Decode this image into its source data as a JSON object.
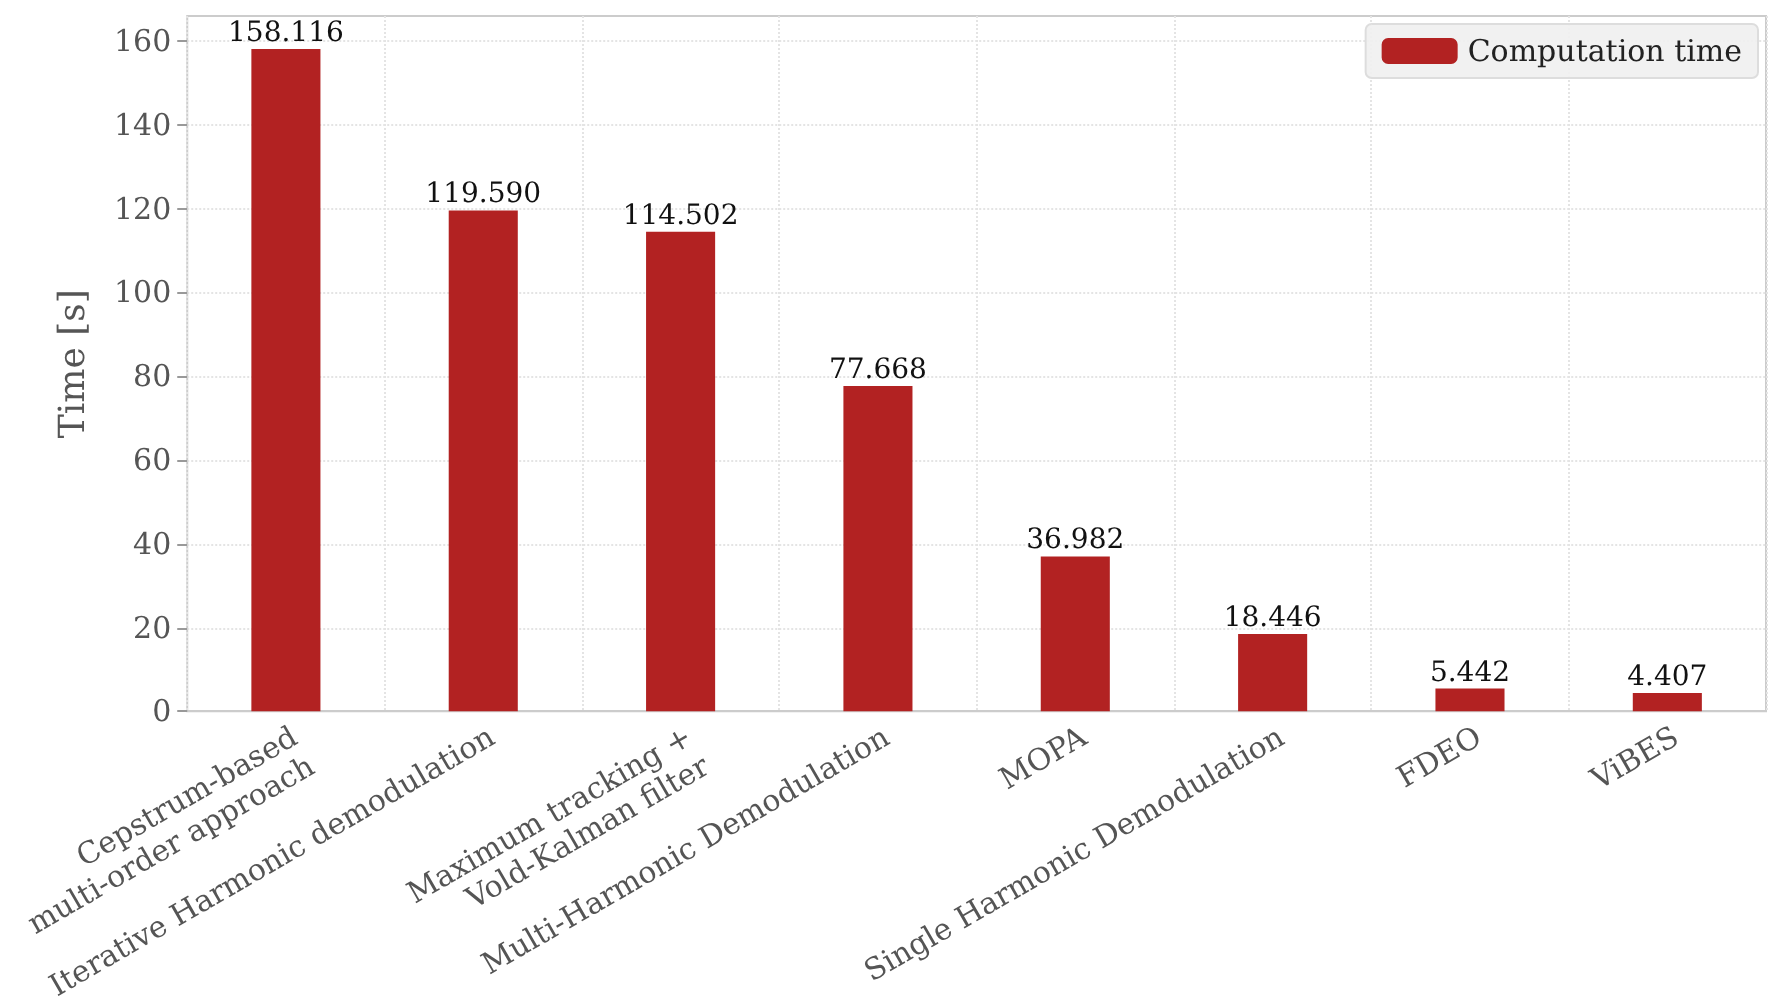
{
  "chart_data": {
    "type": "bar",
    "ylabel": "Time [s]",
    "categories": [
      "Cepstrum-based\nmulti-order approach",
      "Iterative Harmonic demodulation",
      "Maximum tracking +\nVold-Kalman filter",
      "Multi-Harmonic Demodulation",
      "MOPA",
      "Single Harmonic Demodulation",
      "FDEO",
      "ViBES"
    ],
    "series": [
      {
        "name": "Computation time",
        "color": "#b22222",
        "values": [
          158.116,
          119.59,
          114.502,
          77.668,
          36.982,
          18.446,
          5.442,
          4.407
        ],
        "value_labels": [
          "158.116",
          "119.590",
          "114.502",
          "77.668",
          "36.982",
          "18.446",
          "5.442",
          "4.407"
        ]
      }
    ],
    "ylim": [
      0,
      166
    ],
    "yticks": [
      0,
      20,
      40,
      60,
      80,
      100,
      120,
      140,
      160
    ],
    "grid": true,
    "legend": "top right"
  }
}
